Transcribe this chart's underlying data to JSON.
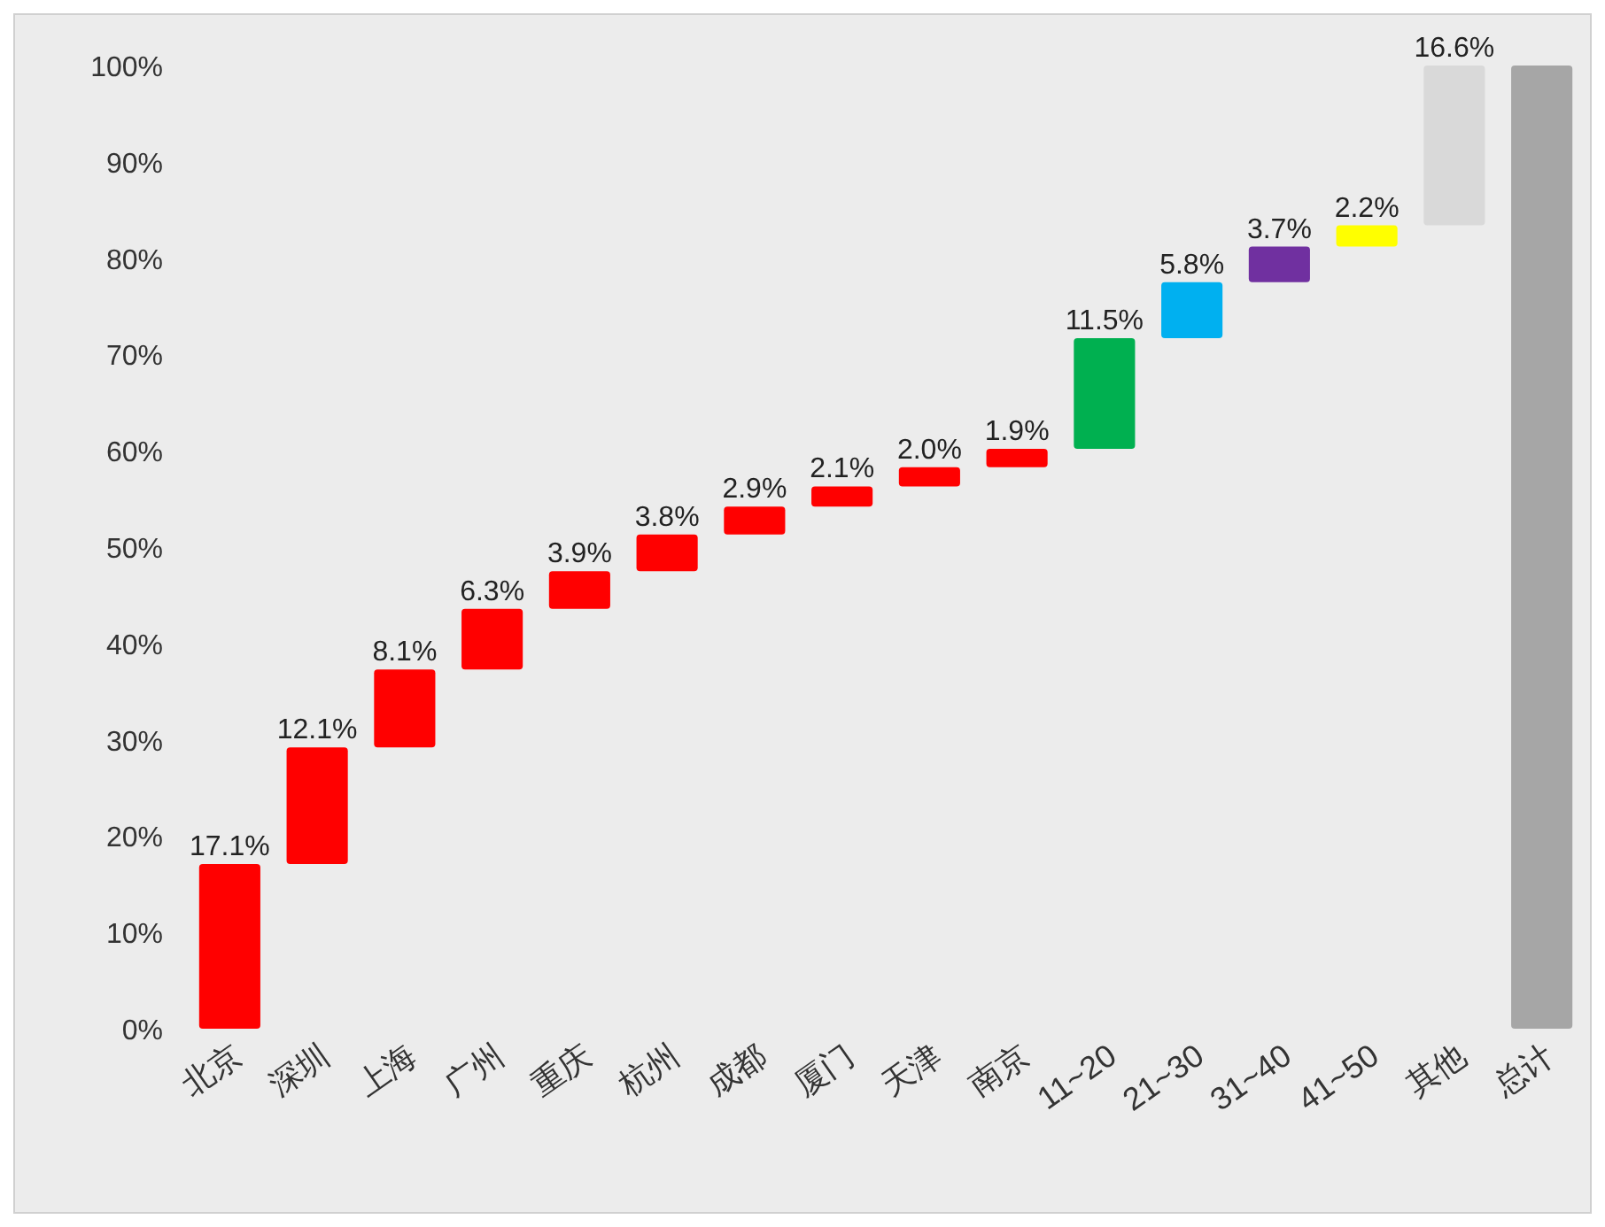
{
  "chart_data": {
    "type": "bar",
    "categories": [
      "北京",
      "深圳",
      "上海",
      "广州",
      "重庆",
      "杭州",
      "成都",
      "厦门",
      "天津",
      "南京",
      "11~20",
      "21~30",
      "31~40",
      "41~50",
      "其他",
      "总计"
    ],
    "values": [
      17.1,
      12.1,
      8.1,
      6.3,
      3.9,
      3.8,
      2.9,
      2.1,
      2.0,
      1.9,
      11.5,
      5.8,
      3.7,
      2.2,
      16.6,
      100
    ],
    "base": [
      0,
      17.1,
      29.2,
      37.3,
      43.6,
      47.5,
      51.3,
      54.2,
      56.3,
      58.3,
      60.2,
      71.7,
      77.5,
      81.2,
      83.4,
      0
    ],
    "colors": [
      "#ff0000",
      "#ff0000",
      "#ff0000",
      "#ff0000",
      "#ff0000",
      "#ff0000",
      "#ff0000",
      "#ff0000",
      "#ff0000",
      "#ff0000",
      "#00b050",
      "#00b0f0",
      "#7030a0",
      "#ffff00",
      "#d9d9d9",
      "#a6a6a6"
    ],
    "value_labels": [
      "17.1%",
      "12.1%",
      "8.1%",
      "6.3%",
      "3.9%",
      "3.8%",
      "2.9%",
      "2.1%",
      "2.0%",
      "1.9%",
      "11.5%",
      "5.8%",
      "3.7%",
      "2.2%",
      "16.6%",
      null
    ],
    "ylim": [
      0,
      100
    ],
    "yticks": [
      {
        "value": 0,
        "label": "0%"
      },
      {
        "value": 10,
        "label": "10%"
      },
      {
        "value": 20,
        "label": "20%"
      },
      {
        "value": 30,
        "label": "30%"
      },
      {
        "value": 40,
        "label": "40%"
      },
      {
        "value": 50,
        "label": "50%"
      },
      {
        "value": 60,
        "label": "60%"
      },
      {
        "value": 70,
        "label": "70%"
      },
      {
        "value": 80,
        "label": "80%"
      },
      {
        "value": 90,
        "label": "90%"
      },
      {
        "value": 100,
        "label": "100%"
      }
    ],
    "grid": false
  }
}
